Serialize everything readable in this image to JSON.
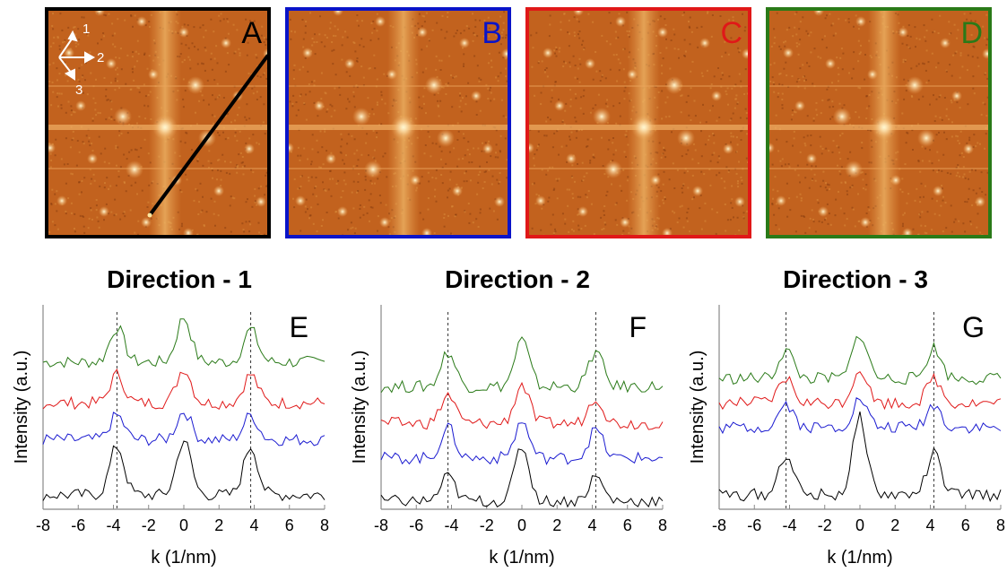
{
  "fft_panels": [
    {
      "label": "A",
      "label_color": "#000000",
      "border_color": "#000000",
      "direction_arrows": [
        "1",
        "2",
        "3"
      ]
    },
    {
      "label": "B",
      "label_color": "#0a14c8",
      "border_color": "#0a14c8"
    },
    {
      "label": "C",
      "label_color": "#e01818",
      "border_color": "#e01818"
    },
    {
      "label": "D",
      "label_color": "#2a7a18",
      "border_color": "#2a7a18"
    }
  ],
  "chart_data": [
    {
      "type": "line",
      "title": "Direction - 1",
      "panel_label": "E",
      "xlabel": "k (1/nm)",
      "ylabel": "Intensity (a.u.)",
      "xlim": [
        -8,
        8
      ],
      "xticks": [
        "-8",
        "-6",
        "-4",
        "-2",
        "0",
        "2",
        "4",
        "6",
        "8"
      ],
      "reference_lines": [
        -3.8,
        3.8
      ],
      "series": [
        {
          "color": "#2a7a18",
          "baseline": 0.72,
          "peaks": [
            [
              -3.8,
              0.17
            ],
            [
              0,
              0.22
            ],
            [
              3.8,
              0.16
            ]
          ]
        },
        {
          "color": "#e01818",
          "baseline": 0.52,
          "peaks": [
            [
              -3.8,
              0.14
            ],
            [
              0,
              0.17
            ],
            [
              3.8,
              0.14
            ]
          ]
        },
        {
          "color": "#1a1ad0",
          "baseline": 0.34,
          "peaks": [
            [
              -3.8,
              0.12
            ],
            [
              0,
              0.14
            ],
            [
              3.8,
              0.12
            ]
          ]
        },
        {
          "color": "#000000",
          "baseline": 0.07,
          "peaks": [
            [
              -3.8,
              0.24
            ],
            [
              0,
              0.27
            ],
            [
              3.8,
              0.24
            ]
          ]
        }
      ]
    },
    {
      "type": "line",
      "title": "Direction - 2",
      "panel_label": "F",
      "xlabel": "k (1/nm)",
      "ylabel": "Intensity (a.u.)",
      "xlim": [
        -8,
        8
      ],
      "xticks": [
        "-8",
        "-6",
        "-4",
        "-2",
        "0",
        "2",
        "4",
        "6",
        "8"
      ],
      "reference_lines": [
        -4.2,
        4.2
      ],
      "series": [
        {
          "color": "#2a7a18",
          "baseline": 0.6,
          "peaks": [
            [
              -4.2,
              0.17
            ],
            [
              0,
              0.23
            ],
            [
              4.2,
              0.17
            ]
          ]
        },
        {
          "color": "#e01818",
          "baseline": 0.42,
          "peaks": [
            [
              -4.2,
              0.14
            ],
            [
              0,
              0.19
            ],
            [
              4.2,
              0.13
            ]
          ]
        },
        {
          "color": "#1a1ad0",
          "baseline": 0.25,
          "peaks": [
            [
              -4.2,
              0.15
            ],
            [
              0,
              0.18
            ],
            [
              4.2,
              0.14
            ]
          ]
        },
        {
          "color": "#000000",
          "baseline": 0.04,
          "peaks": [
            [
              -4.2,
              0.12
            ],
            [
              0,
              0.27
            ],
            [
              4.2,
              0.12
            ]
          ]
        }
      ]
    },
    {
      "type": "line",
      "title": "Direction - 3",
      "panel_label": "G",
      "xlabel": "k (1/nm)",
      "ylabel": "Intensity (a.u.)",
      "xlim": [
        -8,
        8
      ],
      "xticks": [
        "-8",
        "-6",
        "-4",
        "-2",
        "0",
        "2",
        "4",
        "6",
        "8"
      ],
      "reference_lines": [
        -4.2,
        4.2
      ],
      "series": [
        {
          "color": "#2a7a18",
          "baseline": 0.64,
          "peaks": [
            [
              -4.2,
              0.14
            ],
            [
              0,
              0.22
            ],
            [
              4.2,
              0.15
            ]
          ]
        },
        {
          "color": "#e01818",
          "baseline": 0.52,
          "peaks": [
            [
              -4.2,
              0.12
            ],
            [
              0,
              0.17
            ],
            [
              4.2,
              0.12
            ]
          ]
        },
        {
          "color": "#1a1ad0",
          "baseline": 0.4,
          "peaks": [
            [
              -4.2,
              0.12
            ],
            [
              0,
              0.14
            ],
            [
              4.2,
              0.11
            ]
          ]
        },
        {
          "color": "#000000",
          "baseline": 0.07,
          "peaks": [
            [
              -4.2,
              0.2
            ],
            [
              0,
              0.38
            ],
            [
              4.2,
              0.2
            ]
          ]
        }
      ]
    }
  ]
}
